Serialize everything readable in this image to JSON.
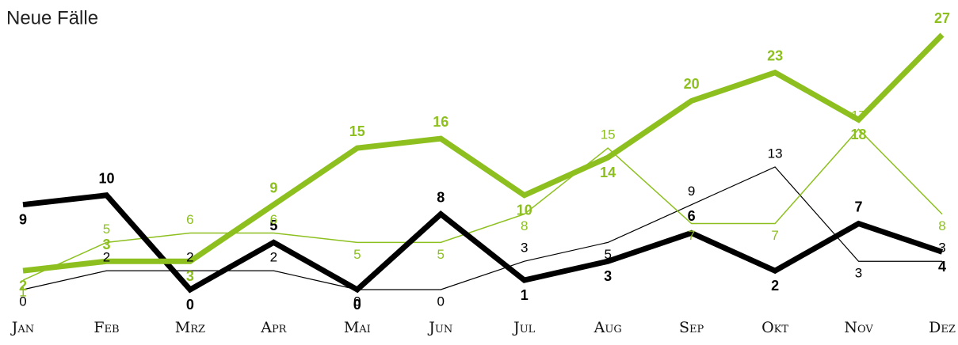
{
  "chart_data": {
    "type": "line",
    "title": "Neue Fälle",
    "categories": [
      "Jan",
      "Feb",
      "Mrz",
      "Apr",
      "Mai",
      "Jun",
      "Jul",
      "Aug",
      "Sep",
      "Okt",
      "Nov",
      "Dez"
    ],
    "series": [
      {
        "color": "#8dc01f",
        "width": 7,
        "bold": true,
        "values": [
          2,
          3,
          3,
          9,
          15,
          16,
          10,
          14,
          20,
          23,
          18,
          27
        ]
      },
      {
        "color": "#000000",
        "width": 7,
        "bold": true,
        "values": [
          9,
          10,
          0,
          5,
          0,
          8,
          1,
          3,
          6,
          2,
          7,
          4
        ]
      },
      {
        "color": "#8dc01f",
        "width": 1.5,
        "bold": false,
        "values": [
          1,
          5,
          6,
          6,
          5,
          5,
          8,
          15,
          7,
          7,
          17,
          8
        ]
      },
      {
        "color": "#000000",
        "width": 1.2,
        "bold": false,
        "values": [
          0,
          2,
          2,
          2,
          0,
          0,
          3,
          5,
          9,
          13,
          3,
          3
        ]
      }
    ],
    "ylim": [
      0,
      27
    ]
  }
}
